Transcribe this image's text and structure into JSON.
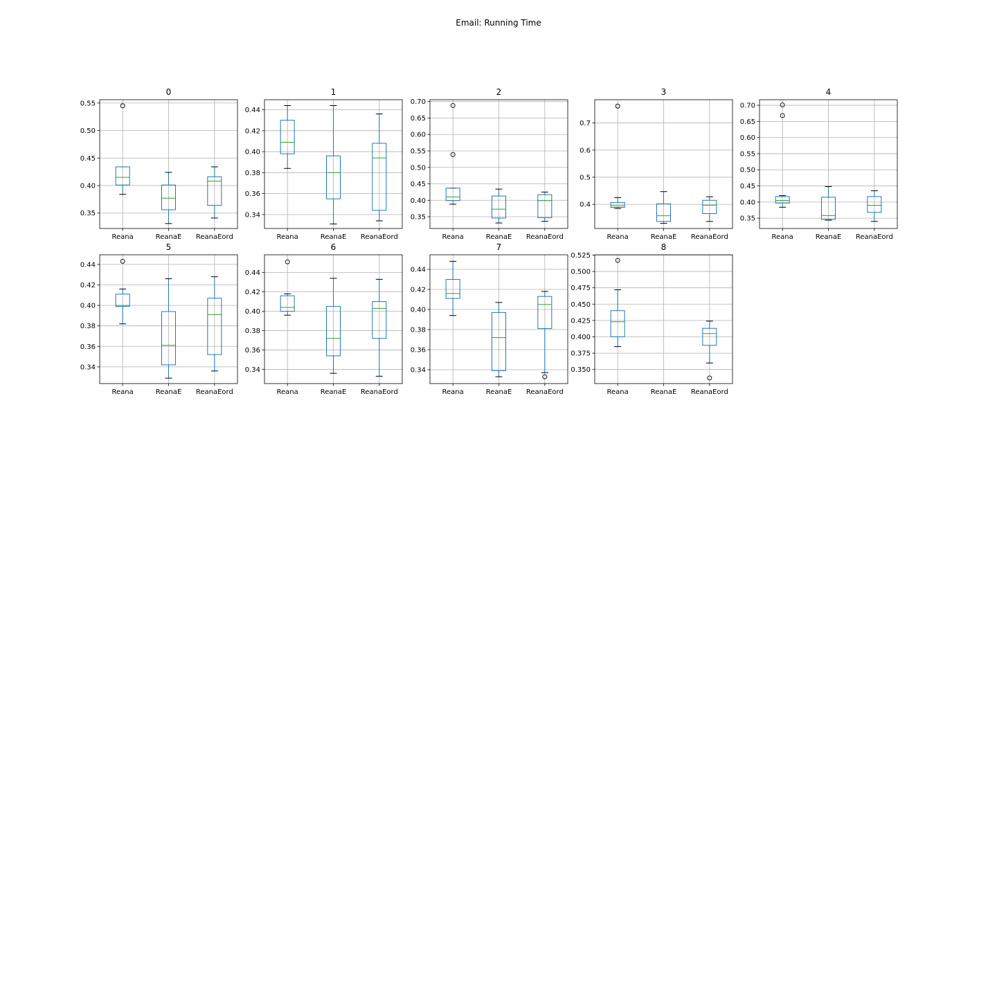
{
  "chart_data": {
    "type": "box",
    "title": "Email: Running Time",
    "categories": [
      "Reana",
      "ReanaE",
      "ReanaEord"
    ],
    "colors": {
      "box": "#1f77b4",
      "median": "#2ca02c",
      "grid": "#b0b0b0",
      "axes": "#000000"
    },
    "panels": [
      {
        "title": "0",
        "ylim": [
          0.322,
          0.556
        ],
        "yticks": [
          "0.35",
          "0.40",
          "0.45",
          "0.50",
          "0.55"
        ],
        "boxes": [
          {
            "min": 0.384,
            "q1": 0.401,
            "median": 0.415,
            "q3": 0.434,
            "max": 0.434,
            "outliers": [
              0.545
            ]
          },
          {
            "min": 0.331,
            "q1": 0.356,
            "median": 0.377,
            "q3": 0.401,
            "max": 0.424,
            "outliers": []
          },
          {
            "min": 0.341,
            "q1": 0.364,
            "median": 0.408,
            "q3": 0.416,
            "max": 0.434,
            "outliers": []
          }
        ]
      },
      {
        "title": "1",
        "ylim": [
          0.3267,
          0.4496
        ],
        "yticks": [
          "0.34",
          "0.36",
          "0.38",
          "0.40",
          "0.42",
          "0.44"
        ],
        "boxes": [
          {
            "min": 0.384,
            "q1": 0.398,
            "median": 0.409,
            "q3": 0.43,
            "max": 0.444,
            "outliers": []
          },
          {
            "min": 0.331,
            "q1": 0.355,
            "median": 0.38,
            "q3": 0.396,
            "max": 0.444,
            "outliers": []
          },
          {
            "min": 0.334,
            "q1": 0.344,
            "median": 0.394,
            "q3": 0.408,
            "max": 0.436,
            "outliers": []
          }
        ]
      },
      {
        "title": "2",
        "ylim": [
          0.3143,
          0.7057
        ],
        "yticks": [
          "0.35",
          "0.40",
          "0.45",
          "0.50",
          "0.55",
          "0.60",
          "0.65",
          "0.70"
        ],
        "boxes": [
          {
            "min": 0.388,
            "q1": 0.399,
            "median": 0.41,
            "q3": 0.437,
            "max": 0.437,
            "outliers": [
              0.539,
              0.688
            ]
          },
          {
            "min": 0.331,
            "q1": 0.346,
            "median": 0.373,
            "q3": 0.413,
            "max": 0.434,
            "outliers": []
          },
          {
            "min": 0.336,
            "q1": 0.347,
            "median": 0.399,
            "q3": 0.417,
            "max": 0.425,
            "outliers": []
          }
        ]
      },
      {
        "title": "3",
        "ylim": [
          0.3111,
          0.7856
        ],
        "yticks": [
          "0.4",
          "0.5",
          "0.6",
          "0.7"
        ],
        "boxes": [
          {
            "min": 0.385,
            "q1": 0.389,
            "median": 0.395,
            "q3": 0.407,
            "max": 0.425,
            "outliers": [
              0.762
            ]
          },
          {
            "min": 0.33,
            "q1": 0.337,
            "median": 0.358,
            "q3": 0.402,
            "max": 0.447,
            "outliers": []
          },
          {
            "min": 0.337,
            "q1": 0.366,
            "median": 0.397,
            "q3": 0.415,
            "max": 0.428,
            "outliers": []
          }
        ]
      },
      {
        "title": "4",
        "ylim": [
          0.3181,
          0.7173
        ],
        "yticks": [
          "0.35",
          "0.40",
          "0.45",
          "0.50",
          "0.55",
          "0.60",
          "0.65",
          "0.70"
        ],
        "boxes": [
          {
            "min": 0.384,
            "q1": 0.397,
            "median": 0.405,
            "q3": 0.417,
            "max": 0.42,
            "outliers": [
              0.668,
              0.701
            ]
          },
          {
            "min": 0.344,
            "q1": 0.346,
            "median": 0.358,
            "q3": 0.415,
            "max": 0.448,
            "outliers": []
          },
          {
            "min": 0.34,
            "q1": 0.368,
            "median": 0.39,
            "q3": 0.417,
            "max": 0.435,
            "outliers": []
          }
        ]
      },
      {
        "title": "5",
        "ylim": [
          0.3237,
          0.4494
        ],
        "yticks": [
          "0.34",
          "0.36",
          "0.38",
          "0.40",
          "0.42",
          "0.44"
        ],
        "boxes": [
          {
            "min": 0.382,
            "q1": 0.399,
            "median": 0.4,
            "q3": 0.411,
            "max": 0.416,
            "outliers": [
              0.443
            ]
          },
          {
            "min": 0.329,
            "q1": 0.342,
            "median": 0.361,
            "q3": 0.394,
            "max": 0.426,
            "outliers": []
          },
          {
            "min": 0.336,
            "q1": 0.352,
            "median": 0.391,
            "q3": 0.407,
            "max": 0.428,
            "outliers": []
          }
        ]
      },
      {
        "title": "6",
        "ylim": [
          0.3254,
          0.4583
        ],
        "yticks": [
          "0.34",
          "0.36",
          "0.38",
          "0.40",
          "0.42",
          "0.44"
        ],
        "boxes": [
          {
            "min": 0.396,
            "q1": 0.4,
            "median": 0.404,
            "q3": 0.416,
            "max": 0.418,
            "outliers": [
              0.451
            ]
          },
          {
            "min": 0.336,
            "q1": 0.354,
            "median": 0.372,
            "q3": 0.405,
            "max": 0.434,
            "outliers": []
          },
          {
            "min": 0.333,
            "q1": 0.372,
            "median": 0.403,
            "q3": 0.41,
            "max": 0.433,
            "outliers": []
          }
        ]
      },
      {
        "title": "7",
        "ylim": [
          0.3262,
          0.4545
        ],
        "yticks": [
          "0.34",
          "0.36",
          "0.38",
          "0.40",
          "0.42",
          "0.44"
        ],
        "boxes": [
          {
            "min": 0.394,
            "q1": 0.411,
            "median": 0.416,
            "q3": 0.43,
            "max": 0.448,
            "outliers": []
          },
          {
            "min": 0.333,
            "q1": 0.339,
            "median": 0.372,
            "q3": 0.397,
            "max": 0.407,
            "outliers": []
          },
          {
            "min": 0.337,
            "q1": 0.381,
            "median": 0.405,
            "q3": 0.413,
            "max": 0.418,
            "outliers": [
              0.333
            ]
          }
        ]
      },
      {
        "title": "8",
        "ylim": [
          0.3285,
          0.5255
        ],
        "yticks": [
          "0.350",
          "0.375",
          "0.400",
          "0.425",
          "0.450",
          "0.475",
          "0.500",
          "0.525"
        ],
        "boxes": [
          {
            "min": 0.385,
            "q1": 0.4,
            "median": 0.423,
            "q3": 0.44,
            "max": 0.472,
            "outliers": [
              0.517
            ]
          },
          null,
          {
            "min": 0.36,
            "q1": 0.387,
            "median": 0.405,
            "q3": 0.413,
            "max": 0.424,
            "outliers": [
              0.337
            ]
          }
        ]
      }
    ]
  }
}
